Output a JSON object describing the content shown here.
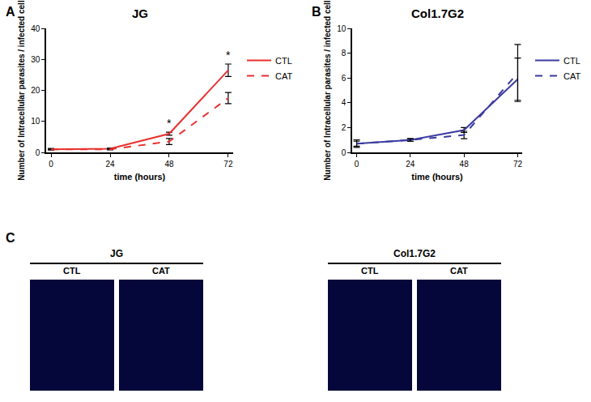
{
  "chart_data": [
    {
      "type": "line",
      "panel": "A",
      "title": "JG",
      "x_label": "time (hours)",
      "y_label": "Number of Intracellular parasites / infected cell",
      "x": [
        0,
        24,
        48,
        72
      ],
      "xlim": [
        -2,
        74
      ],
      "xticks": [
        0,
        24,
        48,
        72
      ],
      "ylim": [
        0,
        40
      ],
      "yticks": [
        0,
        10,
        20,
        30,
        40
      ],
      "legend": "right",
      "series": [
        {
          "name": "CTL",
          "color": "#e8312f",
          "line_style": "solid",
          "values": [
            1,
            1.2,
            6,
            26.5
          ],
          "error": [
            0.2,
            0.2,
            0.5,
            2
          ]
        },
        {
          "name": "CAT",
          "color": "#e8312f",
          "line_style": "dash",
          "values": [
            1,
            1,
            3.5,
            17.5
          ],
          "error": [
            0.2,
            0.2,
            1,
            1.8
          ]
        }
      ],
      "annotations": [
        {
          "text": "*",
          "x": 48,
          "y": 6.8
        },
        {
          "text": "*",
          "x": 72,
          "y": 28.7
        }
      ]
    },
    {
      "type": "line",
      "panel": "B",
      "title": "Col1.7G2",
      "x_label": "time (hours)",
      "y_label": "Number of Intracellular parasites / infected cell",
      "x": [
        0,
        24,
        48,
        72
      ],
      "xlim": [
        -2,
        74
      ],
      "xticks": [
        0,
        24,
        48,
        72
      ],
      "ylim": [
        0,
        10
      ],
      "yticks": [
        0,
        2,
        4,
        6,
        8,
        10
      ],
      "legend": "right",
      "series": [
        {
          "name": "CTL",
          "color": "#3b3ba0",
          "line_style": "solid",
          "values": [
            0.7,
            1.0,
            1.8,
            5.9
          ],
          "error": [
            0.3,
            0.1,
            0.2,
            1.7
          ]
        },
        {
          "name": "CAT",
          "color": "#3b3ba0",
          "line_style": "dash",
          "values": [
            0.7,
            1.0,
            1.4,
            6.4
          ],
          "error": [
            0.2,
            0.1,
            0.3,
            2.3
          ]
        }
      ],
      "annotations": []
    }
  ],
  "panel_c": {
    "panel": "C",
    "groups": [
      {
        "title": "JG",
        "images": [
          "CTL",
          "CAT"
        ]
      },
      {
        "title": "Col1.7G2",
        "images": [
          "CTL",
          "CAT"
        ]
      }
    ]
  }
}
